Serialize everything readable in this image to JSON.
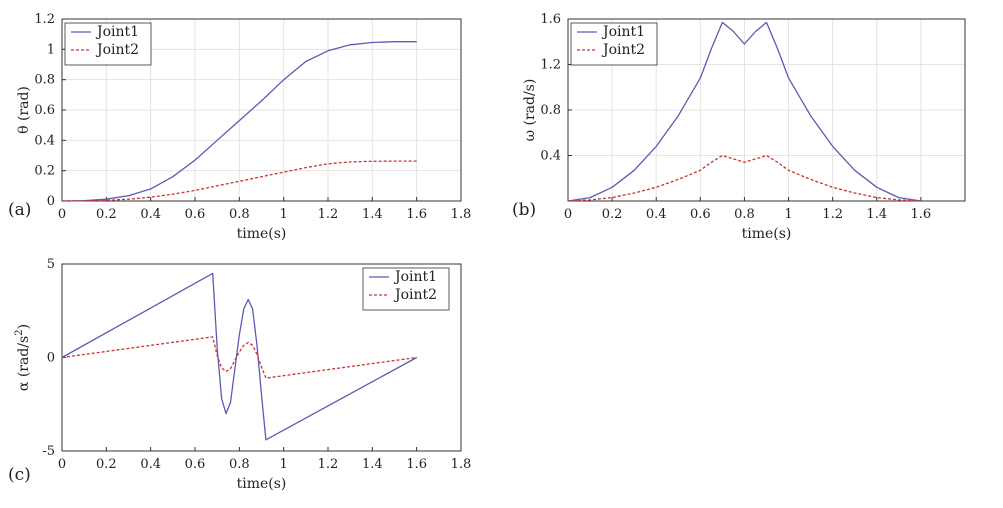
{
  "panels": [
    {
      "label": "(a)"
    },
    {
      "label": "(b)"
    },
    {
      "label": "(c)"
    }
  ],
  "colors": {
    "joint1": "#5b5bb5",
    "joint2": "#cc3333",
    "axis": "#333333",
    "grid": "#e3e3e3"
  },
  "chart_data": [
    {
      "type": "line",
      "title": "",
      "xlabel": "time(s)",
      "ylabel": "θ (rad)",
      "xlim": [
        0,
        1.8
      ],
      "ylim": [
        0,
        1.2
      ],
      "xticks": [
        "0",
        "0.2",
        "0.4",
        "0.6",
        "0.8",
        "1",
        "1.2",
        "1.4",
        "1.6",
        "1.8"
      ],
      "yticks": [
        "0",
        "0.2",
        "0.4",
        "0.6",
        "0.8",
        "1",
        "1.2"
      ],
      "grid": true,
      "legend": "top-left",
      "series": [
        {
          "name": "Joint1",
          "style": "solid",
          "x": [
            0,
            0.1,
            0.2,
            0.3,
            0.4,
            0.5,
            0.6,
            0.7,
            0.8,
            0.9,
            1.0,
            1.1,
            1.2,
            1.3,
            1.4,
            1.5,
            1.6
          ],
          "y": [
            0,
            0.002,
            0.012,
            0.035,
            0.08,
            0.16,
            0.27,
            0.4,
            0.53,
            0.66,
            0.8,
            0.92,
            0.99,
            1.03,
            1.045,
            1.05,
            1.05
          ]
        },
        {
          "name": "Joint2",
          "style": "dashed",
          "x": [
            0,
            0.1,
            0.2,
            0.3,
            0.4,
            0.5,
            0.6,
            0.7,
            0.8,
            0.9,
            1.0,
            1.1,
            1.2,
            1.3,
            1.4,
            1.5,
            1.6
          ],
          "y": [
            0,
            0.001,
            0.004,
            0.012,
            0.025,
            0.045,
            0.07,
            0.1,
            0.13,
            0.16,
            0.19,
            0.22,
            0.245,
            0.258,
            0.262,
            0.263,
            0.263
          ]
        }
      ]
    },
    {
      "type": "line",
      "title": "",
      "xlabel": "time(s)",
      "ylabel": "ω (rad/s)",
      "xlim": [
        0,
        1.8
      ],
      "ylim": [
        0,
        1.6
      ],
      "xticks": [
        "0",
        "0.2",
        "0.4",
        "0.6",
        "0.8",
        "1",
        "1.2",
        "1.4",
        "1.6"
      ],
      "xtick_values": [
        0,
        0.2,
        0.4,
        0.6,
        0.8,
        1,
        1.2,
        1.4,
        1.6
      ],
      "yticks": [
        "0.4",
        "0.8",
        "1.2",
        "1.6"
      ],
      "ytick_values": [
        0.4,
        0.8,
        1.2,
        1.6
      ],
      "grid": true,
      "legend": "top-left",
      "series": [
        {
          "name": "Joint1",
          "style": "solid",
          "x": [
            0,
            0.1,
            0.2,
            0.3,
            0.4,
            0.5,
            0.6,
            0.65,
            0.7,
            0.75,
            0.8,
            0.85,
            0.9,
            0.95,
            1.0,
            1.1,
            1.2,
            1.3,
            1.4,
            1.5,
            1.6
          ],
          "y": [
            0,
            0.03,
            0.12,
            0.27,
            0.48,
            0.75,
            1.08,
            1.34,
            1.57,
            1.49,
            1.38,
            1.49,
            1.57,
            1.34,
            1.08,
            0.75,
            0.48,
            0.27,
            0.12,
            0.03,
            0
          ]
        },
        {
          "name": "Joint2",
          "style": "dashed",
          "x": [
            0,
            0.1,
            0.2,
            0.3,
            0.4,
            0.5,
            0.6,
            0.65,
            0.7,
            0.75,
            0.8,
            0.85,
            0.9,
            0.95,
            1.0,
            1.1,
            1.2,
            1.3,
            1.4,
            1.5,
            1.6
          ],
          "y": [
            0,
            0.01,
            0.03,
            0.07,
            0.12,
            0.19,
            0.27,
            0.34,
            0.4,
            0.37,
            0.34,
            0.37,
            0.4,
            0.34,
            0.27,
            0.19,
            0.12,
            0.07,
            0.03,
            0.01,
            0
          ]
        }
      ]
    },
    {
      "type": "line",
      "title": "",
      "xlabel": "time(s)",
      "ylabel": "α (rad/s²)",
      "ylabel_main": "α (rad/s",
      "ylabel_sup": "2",
      "ylabel_end": ")",
      "xlim": [
        0,
        1.8
      ],
      "ylim": [
        -5,
        5
      ],
      "xticks": [
        "0",
        "0.2",
        "0.4",
        "0.6",
        "0.8",
        "1",
        "1.2",
        "1.4",
        "1.6",
        "1.8"
      ],
      "yticks": [
        "-5",
        "0",
        "5"
      ],
      "ytick_values": [
        -5,
        0,
        5
      ],
      "grid": false,
      "legend": "top-right",
      "series": [
        {
          "name": "Joint1",
          "style": "solid",
          "x": [
            0,
            0.68,
            0.7,
            0.72,
            0.74,
            0.76,
            0.78,
            0.8,
            0.82,
            0.84,
            0.86,
            0.88,
            0.9,
            0.92,
            1.6
          ],
          "y": [
            0,
            4.5,
            0.5,
            -2.2,
            -3.0,
            -2.4,
            -0.6,
            1.2,
            2.6,
            3.1,
            2.6,
            0.6,
            -2.0,
            -4.4,
            0
          ]
        },
        {
          "name": "Joint2",
          "style": "dashed",
          "x": [
            0,
            0.68,
            0.7,
            0.72,
            0.74,
            0.76,
            0.78,
            0.8,
            0.82,
            0.84,
            0.86,
            0.88,
            0.9,
            0.92,
            1.6
          ],
          "y": [
            0,
            1.1,
            0.1,
            -0.55,
            -0.75,
            -0.6,
            -0.15,
            0.3,
            0.65,
            0.8,
            0.65,
            0.15,
            -0.5,
            -1.1,
            0
          ]
        }
      ]
    }
  ]
}
